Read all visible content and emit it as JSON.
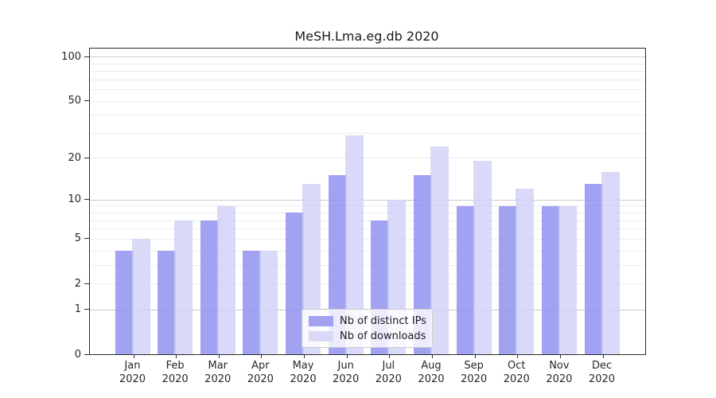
{
  "chart_data": {
    "type": "bar",
    "title": "MeSH.Lma.eg.db 2020",
    "scale": "log1p",
    "year": "2020",
    "categories": [
      "Jan",
      "Feb",
      "Mar",
      "Apr",
      "May",
      "Jun",
      "Jul",
      "Aug",
      "Sep",
      "Oct",
      "Nov",
      "Dec"
    ],
    "series": [
      {
        "name": "Nb of distinct IPs",
        "color": "#a2a2f1",
        "values": [
          4,
          4,
          7,
          4,
          8,
          15,
          7,
          15,
          9,
          9,
          9,
          13
        ]
      },
      {
        "name": "Nb of downloads",
        "color": "#d9d9f7",
        "values": [
          5,
          7,
          9,
          4,
          13,
          29,
          10,
          24,
          19,
          12,
          9,
          16
        ]
      }
    ],
    "yticks": [
      0,
      1,
      2,
      5,
      10,
      20,
      50,
      100
    ],
    "major_gridlines": [
      1,
      10,
      100
    ],
    "minor_gridlines": [
      2,
      3,
      4,
      5,
      6,
      7,
      8,
      9,
      20,
      30,
      40,
      50,
      60,
      70,
      80,
      90
    ],
    "ylim": [
      0,
      115
    ],
    "grid": "on",
    "legend_position": "bottom-center",
    "xlabel": "",
    "ylabel": ""
  }
}
